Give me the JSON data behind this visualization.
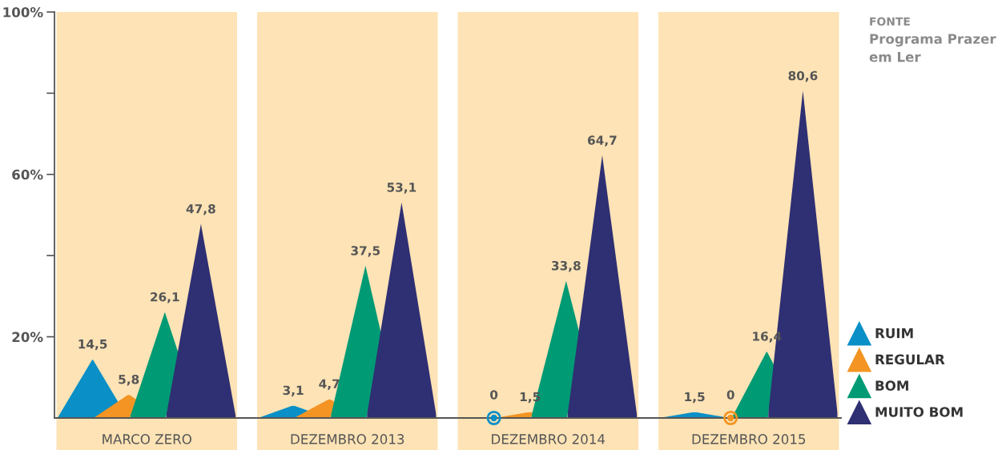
{
  "chart_data": {
    "type": "bar",
    "categories": [
      "MARCO ZERO",
      "DEZEMBRO 2013",
      "DEZEMBRO 2014",
      "DEZEMBRO 2015"
    ],
    "series": [
      {
        "name": "RUIM",
        "color": "#0a8fc7",
        "values": [
          14.5,
          3.1,
          0,
          1.5
        ],
        "value_labels": [
          "14,5",
          "3,1",
          "0",
          "1,5"
        ]
      },
      {
        "name": "REGULAR",
        "color": "#f39423",
        "values": [
          5.8,
          4.7,
          1.5,
          0
        ],
        "value_labels": [
          "5,8",
          "4,7",
          "1,5",
          "0"
        ]
      },
      {
        "name": "BOM",
        "color": "#009a75",
        "values": [
          26.1,
          37.5,
          33.8,
          16.4
        ],
        "value_labels": [
          "26,1",
          "37,5",
          "33,8",
          "16,4"
        ]
      },
      {
        "name": "MUITO BOM",
        "color": "#2f2f73",
        "values": [
          47.8,
          53.1,
          64.7,
          80.6
        ],
        "value_labels": [
          "47,8",
          "53,1",
          "64,7",
          "80,6"
        ]
      }
    ],
    "ylim": [
      0,
      100
    ],
    "yticks": [
      {
        "value": 100,
        "label": "100%"
      },
      {
        "value": 80,
        "label": null
      },
      {
        "value": 60,
        "label": "60%"
      },
      {
        "value": 40,
        "label": null
      },
      {
        "value": 20,
        "label": "20%"
      }
    ],
    "legend": "right",
    "bands": [
      {
        "axis": "x",
        "from": "MARCO ZERO",
        "to": "MARCO ZERO",
        "color": "#fde3b5"
      },
      {
        "axis": "x",
        "from": "DEZEMBRO 2013",
        "to": "DEZEMBRO 2013",
        "color": "#fde3b5"
      },
      {
        "axis": "x",
        "from": "DEZEMBRO 2014",
        "to": "DEZEMBRO 2014",
        "color": "#fde3b5"
      },
      {
        "axis": "x",
        "from": "DEZEMBRO 2015",
        "to": "DEZEMBRO 2015",
        "color": "#fde3b5"
      }
    ],
    "annotations": [
      "FONTE",
      "Programa Prazer em Ler"
    ]
  }
}
